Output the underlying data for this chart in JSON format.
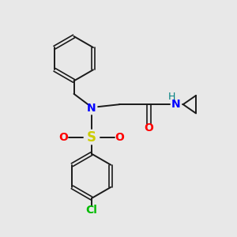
{
  "bg_color": "#e8e8e8",
  "bond_color": "#1a1a1a",
  "N_color": "#0000ff",
  "S_color": "#cccc00",
  "O_color": "#ff0000",
  "Cl_color": "#00bb00",
  "H_color": "#008080",
  "figsize": [
    3.0,
    3.0
  ],
  "dpi": 100,
  "xlim": [
    0,
    10
  ],
  "ylim": [
    0,
    10
  ]
}
